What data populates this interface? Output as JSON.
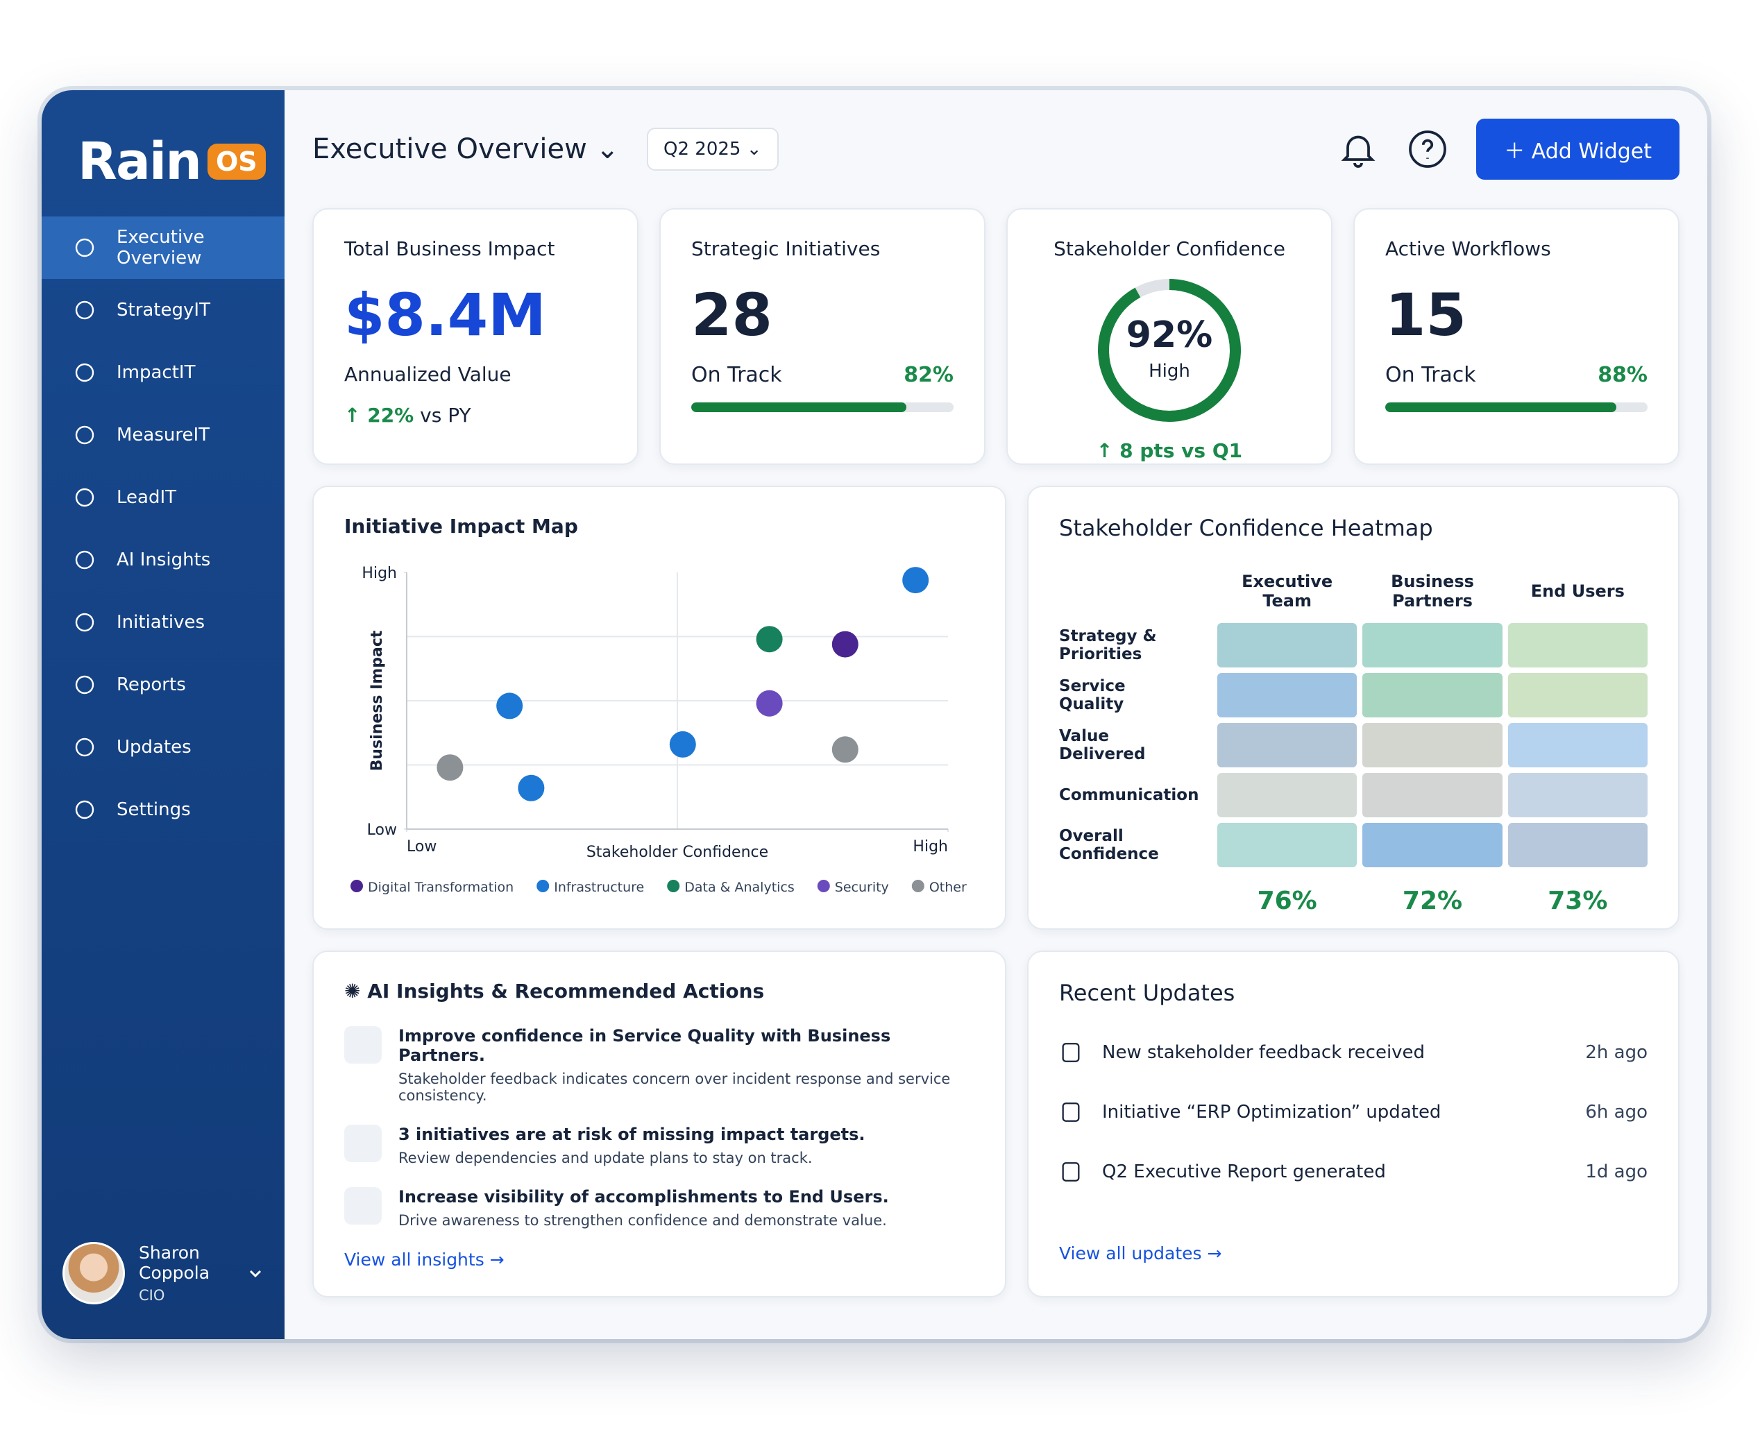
{
  "brand": {
    "name": "Rain",
    "badge": "OS"
  },
  "nav": [
    "Executive Overview",
    "StrategyIT",
    "ImpactIT",
    "MeasureIT",
    "LeadIT",
    "AI Insights",
    "Initiatives",
    "Reports",
    "Updates",
    "Settings"
  ],
  "user": {
    "name": "Sharon Coppola",
    "role": "CIO"
  },
  "header": {
    "title": "Executive Overview",
    "period": "Q2 2025",
    "button": "Add Widget"
  },
  "kpis": [
    {
      "title": "Total Business Impact",
      "value": "$8.4M",
      "subtitle": "Annualized Value",
      "change": "22%",
      "change_note": "vs PY"
    },
    {
      "title": "Strategic Initiatives",
      "value": "28",
      "status": "On Track",
      "percent": "82%",
      "progress": 82
    },
    {
      "title": "Stakeholder Confidence",
      "value": "92%",
      "gauge": 92,
      "level": "High",
      "change": "8 pts vs Q1"
    },
    {
      "title": "Active Workflows",
      "value": "15",
      "status": "On Track",
      "percent": "88%",
      "progress": 88
    }
  ],
  "chart_data": {
    "type": "scatter",
    "title": "Initiative Impact Map",
    "x_label": "Stakeholder Confidence",
    "y_label": "Business Impact",
    "xlim": [
      0,
      10
    ],
    "ylim": [
      0,
      10
    ],
    "xticks": [
      {
        "value": 0,
        "label": "Low"
      },
      {
        "value": 10,
        "label": "High"
      }
    ],
    "yticks": [
      {
        "value": 0,
        "label": "Low"
      },
      {
        "value": 10,
        "label": "High"
      }
    ],
    "grid_x": [
      5
    ],
    "grid_y": [
      2.5,
      5,
      7.5
    ],
    "series": [
      {
        "name": "Digital Transformation",
        "color": "#4a2591",
        "x": [
          8.1
        ],
        "values": [
          7.2
        ]
      },
      {
        "name": "Infrastructure",
        "color": "#1c78d4",
        "x": [
          9.4,
          1.9,
          5.1,
          2.3
        ],
        "values": [
          9.7,
          4.8,
          3.3,
          1.6
        ]
      },
      {
        "name": "Data & Analytics",
        "color": "#17805c",
        "x": [
          6.7
        ],
        "values": [
          7.4
        ]
      },
      {
        "name": "Security",
        "color": "#6a4bbd",
        "x": [
          6.7
        ],
        "values": [
          4.9
        ]
      },
      {
        "name": "Other",
        "color": "#8c9196",
        "x": [
          8.1,
          0.8
        ],
        "values": [
          3.1,
          2.4
        ]
      }
    ]
  },
  "heatmap": {
    "title": "Stakeholder Confidence Heatmap",
    "columns": [
      "Executive Team",
      "Business Partners",
      "End Users"
    ],
    "rows": [
      "Strategy & Priorities",
      "Service Quality",
      "Value Delivered",
      "Communication",
      "Overall Confidence"
    ],
    "cells": [
      [
        "#a6cfd6",
        "#a8d8cc",
        "#c9e3c6"
      ],
      [
        "#9fc3e3",
        "#a9d6c0",
        "#cde3c4"
      ],
      [
        "#b2c6d8",
        "#d3d5cf",
        "#b5d3ee"
      ],
      [
        "#d5dcd8",
        "#d2d5d3",
        "#c6d5e6"
      ],
      [
        "#b3dbd8",
        "#93bde3",
        "#b8c8dc"
      ]
    ],
    "totals": [
      "76%",
      "72%",
      "73%"
    ]
  },
  "insights": {
    "title": "AI Insights & Recommended Actions",
    "items": [
      {
        "title": "Improve confidence in Service Quality with Business Partners.",
        "text": "Stakeholder feedback indicates concern over incident response and service consistency."
      },
      {
        "title": "3 initiatives are at risk of missing impact targets.",
        "text": "Review dependencies and update plans to stay on track."
      },
      {
        "title": "Increase visibility of accomplishments to End Users.",
        "text": "Drive awareness to strengthen confidence and demonstrate value."
      }
    ],
    "link": "View all insights"
  },
  "updates": {
    "title": "Recent Updates",
    "items": [
      {
        "text": "New stakeholder feedback received",
        "time": "2h ago"
      },
      {
        "text": "Initiative “ERP Optimization” updated",
        "time": "6h ago"
      },
      {
        "text": "Q2 Executive Report generated",
        "time": "1d ago"
      }
    ],
    "link": "View all updates"
  }
}
